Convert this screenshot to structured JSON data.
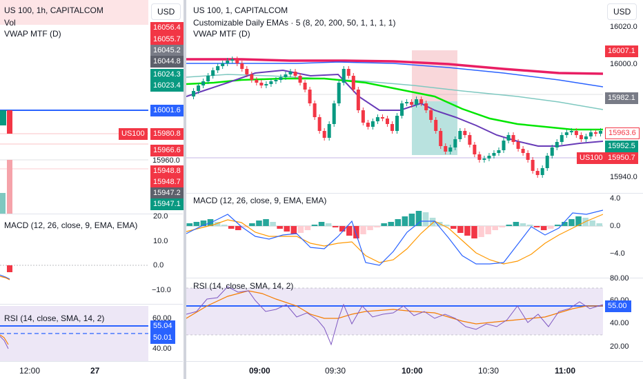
{
  "colors": {
    "up": "#089981",
    "down": "#f23645",
    "blue": "#2962ff",
    "orange": "#f57c00",
    "purple": "#673ab7",
    "green": "#00e600",
    "teal": "#7ec8c0",
    "pink": "#e91e63",
    "rsi_bg": "#ede7f6"
  },
  "left": {
    "title": "US 100, 1h, CAPITALCOM",
    "vol_label": "Vol",
    "vwap_label": "VWAP MTF (D)",
    "currency": "USD",
    "price_tags": [
      {
        "text": "16056.4",
        "color": "#f23645"
      },
      {
        "text": "16055.7",
        "color": "#f23645"
      },
      {
        "text": "16045.2",
        "color": "#787b86"
      },
      {
        "text": "16044.8",
        "color": "#5d606b"
      },
      {
        "text": "16024.3",
        "color": "#089981"
      },
      {
        "text": "16023.4",
        "color": "#089981"
      },
      {
        "text": "16001.6",
        "color": "#2962ff"
      },
      {
        "text": "15980.8",
        "color": "#f23645"
      },
      {
        "text": "15966.6",
        "color": "#f23645"
      },
      {
        "text": "15948.8",
        "color": "#f23645"
      },
      {
        "text": "15948.7",
        "color": "#f23645"
      },
      {
        "text": "15947.2",
        "color": "#5d606b"
      },
      {
        "text": "15947.1",
        "color": "#089981"
      }
    ],
    "symbol_tag": "US100",
    "axis_15960": "15960.0",
    "macd_title": "MACD (12, 26, close, 9, EMA, EMA)",
    "macd_ticks": [
      "20.0",
      "10.0",
      "0.0",
      "−10.0"
    ],
    "rsi_title": "RSI (14, close, SMA, 14, 2)",
    "rsi_ticks": [
      "60.00",
      "40.00"
    ],
    "rsi_tags": [
      {
        "text": "55.04",
        "color": "#2962ff"
      },
      {
        "text": "50.01",
        "color": "#2962ff"
      }
    ],
    "time_labels": [
      "12:00",
      "27"
    ]
  },
  "right": {
    "title": "US 100, 1, CAPITALCOM",
    "ema_label": "Customizable Daily EMAs · 5 (8, 20, 200, 50, 1, 1, 1, 1)",
    "vwap_label": "VWAP MTF (D)",
    "currency": "USD",
    "price_ticks": [
      "16020.0",
      "16000.0",
      "15940.0"
    ],
    "price_tags": [
      {
        "text": "16007.1",
        "color": "#f23645"
      },
      {
        "text": "15982.1",
        "color": "#787b86"
      },
      {
        "text": "15963.6",
        "color": "#ffffff",
        "fg": "#f23645"
      },
      {
        "text": "15952.5",
        "color": "#089981"
      },
      {
        "text": "15950.7",
        "color": "#f23645"
      }
    ],
    "symbol_tag": "US100",
    "macd_title": "MACD (12, 26, close, 9, EMA, EMA)",
    "macd_ticks": [
      "4.0",
      "0.0",
      "−4.0"
    ],
    "rsi_title": "RSI (14, close, SMA, 14, 2)",
    "rsi_ticks": [
      "80.00",
      "60.00",
      "40.00",
      "20.00"
    ],
    "rsi_tag": "55.00",
    "time_labels": [
      "09:00",
      "09:30",
      "10:00",
      "10:30",
      "11:00"
    ]
  }
}
